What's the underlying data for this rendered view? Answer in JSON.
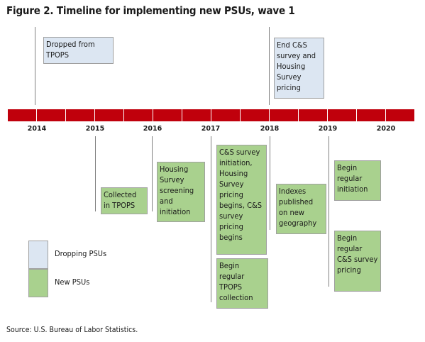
{
  "title": "Figure 2. Timeline for implementing new PSUs, wave 1",
  "timeline": {
    "segments": 14,
    "years": [
      "2014",
      "2015",
      "2016",
      "2017",
      "2018",
      "2019",
      "2020"
    ]
  },
  "boxes": {
    "dropped_tpops": "Dropped from TPOPS",
    "end_cs": "End C&S survey and Housing Survey pricing",
    "collected_tpops": "Collected in TPOPS",
    "housing_screening": "Housing Survey screening and initiation",
    "cs_initiation": "C&S survey initiation, Housing Survey pricing begins, C&S survey pricing begins",
    "regular_tpops": "Begin regular TPOPS collection",
    "indexes_published": "Indexes published on new geography",
    "regular_initiation": "Begin regular initiation",
    "regular_cs": "Begin regular C&S survey pricing"
  },
  "legend": {
    "dropping": "Dropping PSUs",
    "new": "New PSUs"
  },
  "colors": {
    "bar": "#c0000c",
    "dropping": "#dce6f2",
    "new": "#a9d18e"
  },
  "source": "Source: U.S. Bureau of Labor Statistics."
}
